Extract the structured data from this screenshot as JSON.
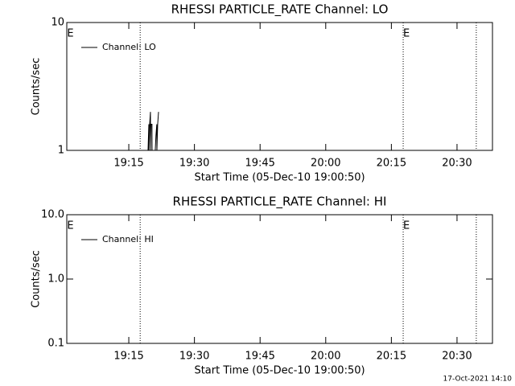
{
  "chart_data": [
    {
      "type": "line",
      "title": "RHESSI PARTICLE_RATE Channel: LO",
      "xlabel": "Start Time (05-Dec-10 19:00:50)",
      "ylabel": "Counts/sec",
      "log_y": true,
      "ylim": [
        1,
        10
      ],
      "yticks": [
        1,
        10
      ],
      "xlim": [
        0.833,
        98.1
      ],
      "xticks": [
        {
          "value": 15,
          "label": "19:15"
        },
        {
          "value": 30,
          "label": "19:30"
        },
        {
          "value": 45,
          "label": "19:45"
        },
        {
          "value": 60,
          "label": "20:00"
        },
        {
          "value": 75,
          "label": "20:15"
        },
        {
          "value": 90,
          "label": "20:30"
        }
      ],
      "vlines": [
        17.6,
        77.7,
        94.4
      ],
      "annotations": [
        {
          "x": 0.9,
          "text": "E"
        },
        {
          "x": 77.7,
          "text": "E"
        }
      ],
      "series": [
        {
          "name": "Channel: LO",
          "color": "#000000",
          "x": [
            19.4,
            19.58,
            19.6,
            19.77,
            19.95,
            19.97,
            20.1,
            20.3,
            20.32,
            21.05,
            21.2,
            21.4,
            21.42,
            21.6,
            21.8
          ],
          "values": [
            1,
            1.6,
            1,
            1.6,
            2,
            1,
            1.6,
            1.6,
            1,
            1,
            1.3,
            1.6,
            1,
            1.6,
            2
          ]
        }
      ]
    },
    {
      "type": "line",
      "title": "RHESSI PARTICLE_RATE Channel: HI",
      "xlabel": "Start Time (05-Dec-10 19:00:50)",
      "ylabel": "Counts/sec",
      "log_y": true,
      "ylim": [
        0.1,
        10
      ],
      "yticks": [
        0.1,
        {
          "value": 1,
          "label": "1.0"
        },
        {
          "value": 10,
          "label": "10.0"
        }
      ],
      "xlim": [
        0.833,
        98.1
      ],
      "xticks": [
        {
          "value": 15,
          "label": "19:15"
        },
        {
          "value": 30,
          "label": "19:30"
        },
        {
          "value": 45,
          "label": "19:45"
        },
        {
          "value": 60,
          "label": "20:00"
        },
        {
          "value": 75,
          "label": "20:15"
        },
        {
          "value": 90,
          "label": "20:30"
        }
      ],
      "vlines": [
        17.6,
        77.7,
        94.4
      ],
      "annotations": [
        {
          "x": 0.9,
          "text": "E"
        },
        {
          "x": 77.7,
          "text": "E"
        }
      ],
      "series": [
        {
          "name": "Channel: HI",
          "color": "#000000",
          "x": [],
          "values": []
        }
      ]
    }
  ],
  "footer": "17-Oct-2021 14:10"
}
